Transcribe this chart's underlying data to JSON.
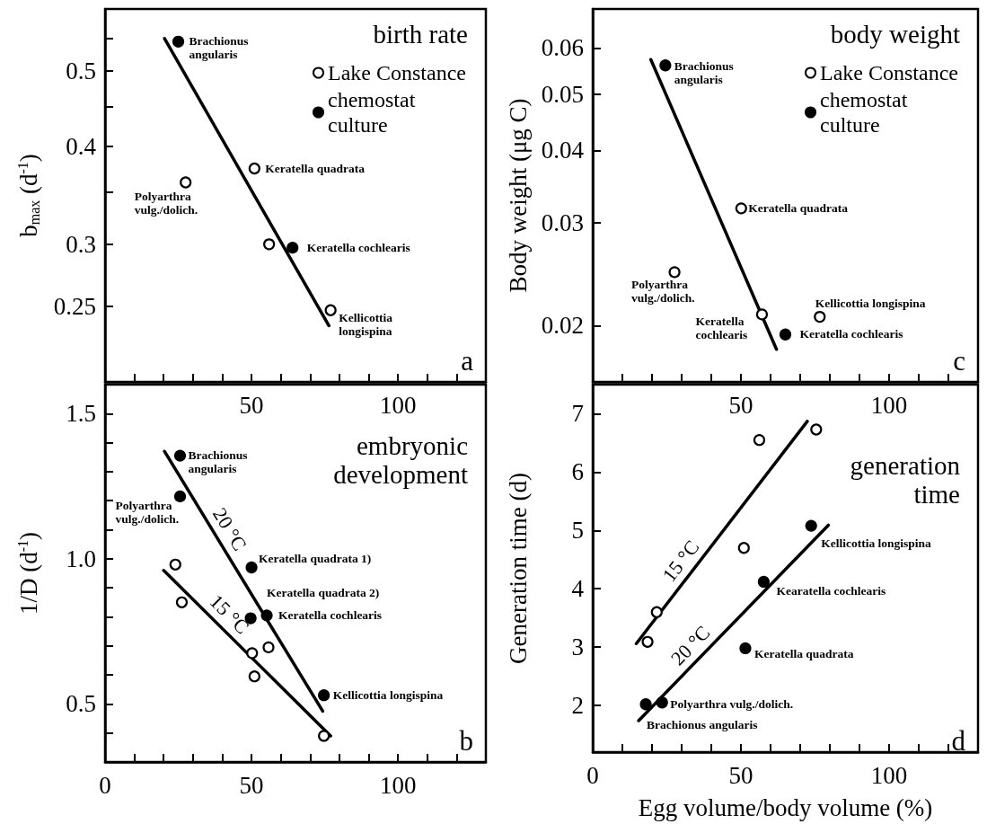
{
  "chart_data": [
    {
      "type": "scatter",
      "title": "birth rate",
      "ylabel": "b$_{max}$ (d$^{-1}$)",
      "log": "y",
      "legend": "top right",
      "xlim": [
        0,
        130
      ],
      "xticks": [
        {
          "value": 0,
          "label": null
        },
        {
          "value": 10,
          "label": null
        },
        {
          "value": 20,
          "label": null
        },
        {
          "value": 30,
          "label": null
        },
        {
          "value": 40,
          "label": null
        },
        50,
        {
          "value": 60,
          "label": null
        },
        {
          "value": 70,
          "label": null
        },
        {
          "value": 80,
          "label": null
        },
        {
          "value": 90,
          "label": null
        },
        100,
        {
          "value": 110,
          "label": null
        },
        {
          "value": 120,
          "label": null
        }
      ],
      "ylim": [
        0.2,
        0.6
      ],
      "yticks": [
        0.25,
        0.3,
        {
          "value": 0.35,
          "label": null
        },
        0.4,
        {
          "value": 0.45,
          "label": null
        },
        0.5,
        {
          "value": 0.55,
          "label": null
        }
      ],
      "series": [
        {
          "name": "Lake Constance",
          "color": "#ffffff",
          "x": [
            27.5,
            51,
            56,
            77
          ],
          "values": [
            0.36,
            0.375,
            0.3,
            0.247
          ]
        },
        {
          "name": "chemostat culture",
          "color": "#000000",
          "x": [
            25,
            64
          ],
          "values": [
            0.545,
            0.297
          ]
        },
        {
          "type": "line",
          "color": "#000000",
          "x": [
            20.3,
            76.4
          ],
          "values": [
            0.55,
            0.236
          ]
        }
      ],
      "annotations": [
        "a",
        {
          "text": "Brachionus\nangularis",
          "x": 25,
          "y": 0.545
        },
        {
          "text": "Keratella quadrata",
          "x": 51,
          "y": 0.375
        },
        {
          "text": "Polyarthra\nvulg./dolich.",
          "x": 27.5,
          "y": 0.36
        },
        {
          "text": "Keratella cochlearis",
          "x": 64,
          "y": 0.297
        },
        {
          "text": "Kellicottia\nlongispina",
          "x": 77,
          "y": 0.247
        }
      ]
    },
    {
      "type": "scatter",
      "title": "body weight",
      "ylabel": "Body weight (μg C)",
      "log": "y",
      "legend": "top right",
      "xlim": [
        0,
        130
      ],
      "xticks": [
        {
          "value": 0,
          "label": null
        },
        {
          "value": 10,
          "label": null
        },
        {
          "value": 20,
          "label": null
        },
        {
          "value": 30,
          "label": null
        },
        {
          "value": 40,
          "label": null
        },
        50,
        {
          "value": 60,
          "label": null
        },
        {
          "value": 70,
          "label": null
        },
        {
          "value": 80,
          "label": null
        },
        {
          "value": 90,
          "label": null
        },
        100,
        {
          "value": 110,
          "label": null
        },
        {
          "value": 120,
          "label": null
        }
      ],
      "ylim": [
        0.016,
        0.07
      ],
      "yticks": [
        0.02,
        0.03,
        0.04,
        0.05,
        0.06
      ],
      "series": [
        {
          "name": "Lake Constance",
          "color": "#ffffff",
          "x": [
            27.6,
            50.1,
            57.1,
            76.6
          ],
          "values": [
            0.0247,
            0.0318,
            0.0209,
            0.0207
          ]
        },
        {
          "name": "chemostat culture",
          "color": "#000000",
          "x": [
            24.5,
            65
          ],
          "values": [
            0.056,
            0.0193
          ]
        },
        {
          "type": "line",
          "color": "#000000",
          "x": [
            19.6,
            62
          ],
          "values": [
            0.0573,
            0.0182
          ]
        }
      ],
      "annotations": [
        "c",
        {
          "text": "Brachionus\nangularis",
          "x": 24.5,
          "y": 0.056
        },
        {
          "text": "Keratella quadrata",
          "x": 50.1,
          "y": 0.0318
        },
        {
          "text": "Polyarthra\nvulg./dolich.",
          "x": 27.6,
          "y": 0.0247
        },
        {
          "text": "Keratella\ncochlearis",
          "x": 57.1,
          "y": 0.0209
        },
        {
          "text": "Kellicottia longispina",
          "x": 76.6,
          "y": 0.0207
        },
        {
          "text": "Keratella cochlearis",
          "x": 65,
          "y": 0.0193
        }
      ]
    },
    {
      "type": "scatter",
      "title": "embryonic\ndevelopment",
      "ylabel": "1/D (d$^{-1}$)",
      "xlim": [
        0,
        130
      ],
      "xticks": [
        0,
        {
          "value": 10,
          "label": null
        },
        {
          "value": 20,
          "label": null
        },
        {
          "value": 30,
          "label": null
        },
        {
          "value": 40,
          "label": null
        },
        50,
        {
          "value": 60,
          "label": null
        },
        {
          "value": 70,
          "label": null
        },
        {
          "value": 80,
          "label": null
        },
        {
          "value": 90,
          "label": null
        },
        100,
        {
          "value": 110,
          "label": null
        },
        {
          "value": 120,
          "label": null
        }
      ],
      "ylim": [
        0.3,
        1.6
      ],
      "yticks": [
        {
          "value": 0.4,
          "label": null
        },
        0.5,
        {
          "value": 0.6,
          "label": null
        },
        {
          "value": 0.7,
          "label": null
        },
        {
          "value": 0.8,
          "label": null
        },
        {
          "value": 0.9,
          "label": null
        },
        {
          "value": 1,
          "label": "1.0"
        },
        {
          "value": 1.1,
          "label": null
        },
        {
          "value": 1.2,
          "label": null
        },
        {
          "value": 1.3,
          "label": null
        },
        {
          "value": 1.4,
          "label": null
        },
        1.5
      ],
      "series": [
        {
          "color": "#ffffff",
          "x": [
            24,
            26.2,
            50.2,
            51,
            55.8,
            74.7
          ],
          "values": [
            0.98,
            0.85,
            0.675,
            0.595,
            0.695,
            0.39
          ]
        },
        {
          "color": "#000000",
          "x": [
            25.6,
            25.6,
            50,
            49.7,
            55.2,
            74.7
          ],
          "values": [
            1.355,
            1.215,
            0.97,
            0.795,
            0.805,
            0.53
          ]
        },
        {
          "type": "line",
          "name": "20 °C",
          "color": "#000000",
          "x": [
            20.3,
            74.3
          ],
          "values": [
            1.37,
            0.475
          ]
        },
        {
          "type": "line",
          "name": "15 °C",
          "color": "#000000",
          "x": [
            20,
            77
          ],
          "values": [
            0.96,
            0.39
          ]
        }
      ],
      "annotations": [
        "b",
        {
          "text": "Brachionus\nangularis",
          "x": 25.6,
          "y": 1.355
        },
        {
          "text": "Polyarthra\nvulg./dolich.",
          "x": 25.6,
          "y": 1.215
        },
        {
          "text": "Keratella quadrata 1)",
          "x": 50,
          "y": 0.97
        },
        {
          "text": "Keratella quadrata 2)",
          "x": 49.7,
          "y": 0.795
        },
        {
          "text": "Keratella cochlearis",
          "x": 55.2,
          "y": 0.805
        },
        {
          "text": "Kellicottia longispina",
          "x": 74.7,
          "y": 0.53
        }
      ]
    },
    {
      "type": "scatter",
      "title": "generation\ntime",
      "ylabel": "Generation time (d)",
      "xlabel": "Egg volume/body volume (%)",
      "xlim": [
        0,
        130
      ],
      "xticks": [
        0,
        {
          "value": 10,
          "label": null
        },
        {
          "value": 20,
          "label": null
        },
        {
          "value": 30,
          "label": null
        },
        {
          "value": 40,
          "label": null
        },
        50,
        {
          "value": 60,
          "label": null
        },
        {
          "value": 70,
          "label": null
        },
        {
          "value": 80,
          "label": null
        },
        {
          "value": 90,
          "label": null
        },
        100,
        {
          "value": 110,
          "label": null
        },
        {
          "value": 120,
          "label": null
        }
      ],
      "ylim": [
        1.2,
        7.5
      ],
      "yticks": [
        2,
        3,
        4,
        5,
        6,
        7
      ],
      "series": [
        {
          "color": "#ffffff",
          "x": [
            18.5,
            21.6,
            51,
            56.2,
            75.4
          ],
          "values": [
            3.09,
            3.6,
            4.7,
            6.55,
            6.73
          ]
        },
        {
          "color": "#000000",
          "x": [
            17.9,
            23.4,
            51.5,
            57.7,
            73.7
          ],
          "values": [
            2.02,
            2.05,
            2.98,
            4.12,
            5.08
          ]
        },
        {
          "type": "line",
          "name": "15 °C",
          "color": "#000000",
          "x": [
            14.7,
            72.4
          ],
          "values": [
            3.06,
            6.87
          ]
        },
        {
          "type": "line",
          "name": "20 °C",
          "color": "#000000",
          "x": [
            15.5,
            79.5
          ],
          "values": [
            1.74,
            5.09
          ]
        }
      ],
      "annotations": [
        "d",
        {
          "text": "Kellicottia longispina",
          "x": 73.7,
          "y": 5.08
        },
        {
          "text": "Kearatella cochlearis",
          "x": 57.7,
          "y": 4.12
        },
        {
          "text": "Keratella quadrata",
          "x": 51.5,
          "y": 2.98
        },
        {
          "text": "Polyarthra vulg./dolich.",
          "x": 23.4,
          "y": 2.05
        },
        {
          "text": "Brachionus angularis",
          "x": 17.9,
          "y": 2.02
        }
      ]
    }
  ]
}
